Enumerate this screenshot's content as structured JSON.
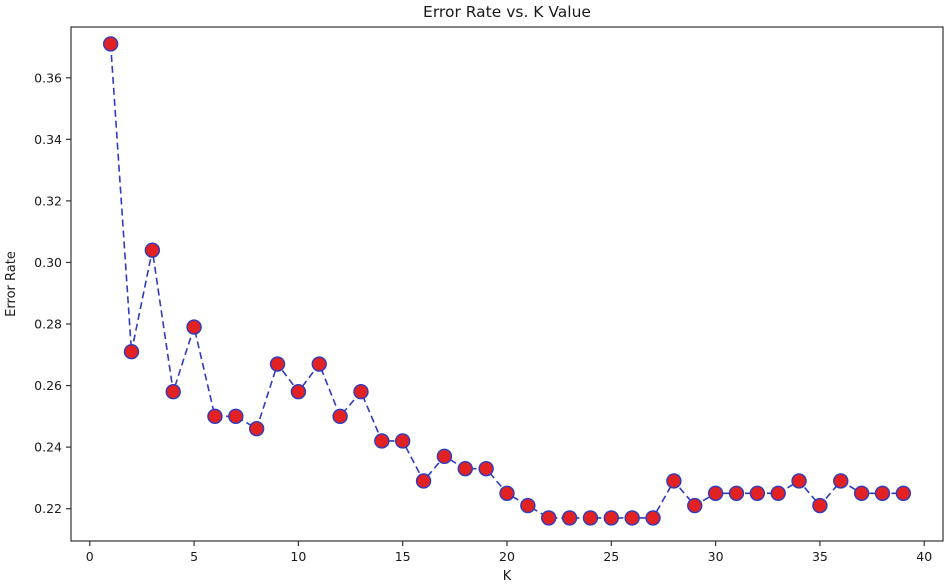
{
  "chart_data": {
    "type": "line",
    "title": "Error Rate vs. K Value",
    "xlabel": "K",
    "ylabel": "Error Rate",
    "x": [
      1,
      2,
      3,
      4,
      5,
      6,
      7,
      8,
      9,
      10,
      11,
      12,
      13,
      14,
      15,
      16,
      17,
      18,
      19,
      20,
      21,
      22,
      23,
      24,
      25,
      26,
      27,
      28,
      29,
      30,
      31,
      32,
      33,
      34,
      35,
      36,
      37,
      38,
      39
    ],
    "y": [
      0.371,
      0.271,
      0.304,
      0.258,
      0.279,
      0.25,
      0.25,
      0.246,
      0.267,
      0.258,
      0.267,
      0.25,
      0.258,
      0.242,
      0.242,
      0.229,
      0.237,
      0.233,
      0.233,
      0.225,
      0.221,
      0.217,
      0.217,
      0.217,
      0.217,
      0.217,
      0.217,
      0.229,
      0.221,
      0.225,
      0.225,
      0.225,
      0.225,
      0.229,
      0.221,
      0.229,
      0.225,
      0.225,
      0.225
    ],
    "xlim": [
      -0.9,
      40.9
    ],
    "ylim": [
      0.2095,
      0.3765
    ],
    "xticks": [
      0,
      5,
      10,
      15,
      20,
      25,
      30,
      35,
      40
    ],
    "yticks": [
      0.22,
      0.24,
      0.26,
      0.28,
      0.3,
      0.32,
      0.34,
      0.36
    ],
    "grid": false,
    "legend_position": "none",
    "line_color": "#2e3bbf",
    "line_style": "dashed",
    "marker": "circle",
    "marker_face_color": "#e22222",
    "marker_edge_color": "#2e3bbf",
    "axis_color": "#333333"
  }
}
